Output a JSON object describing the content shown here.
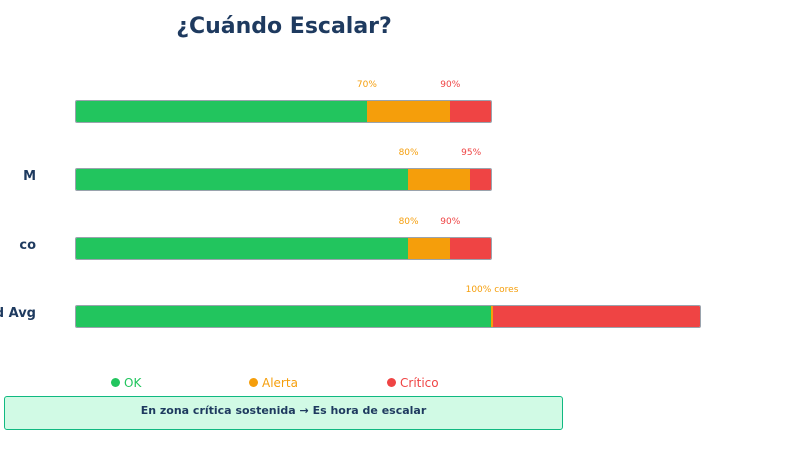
{
  "title": "¿Cuándo Escalar?",
  "colors": {
    "ok": "#22c55e",
    "alert": "#f59e0b",
    "critical": "#ef4444",
    "text": "#1e3a5f"
  },
  "rows": [
    {
      "label": "",
      "ok_to": 70,
      "alert_to": 90,
      "end": 100,
      "thresholds": [
        {
          "label": "70%",
          "at": 70,
          "level": "alert"
        },
        {
          "label": "90%",
          "at": 90,
          "level": "critical"
        }
      ]
    },
    {
      "label": "M",
      "ok_to": 80,
      "alert_to": 95,
      "end": 100,
      "thresholds": [
        {
          "label": "80%",
          "at": 80,
          "level": "alert"
        },
        {
          "label": "95%",
          "at": 95,
          "level": "critical"
        }
      ]
    },
    {
      "label": "co",
      "ok_to": 80,
      "alert_to": 90,
      "end": 100,
      "thresholds": [
        {
          "label": "80%",
          "at": 80,
          "level": "alert"
        },
        {
          "label": "90%",
          "at": 90,
          "level": "critical"
        }
      ]
    },
    {
      "label": "d Avg",
      "ok_to": 100,
      "alert_to": 100,
      "end": 150,
      "thresholds": [
        {
          "label": "100% cores",
          "at": 100,
          "level": "alert"
        }
      ]
    }
  ],
  "legend": [
    {
      "label": "OK",
      "level": "ok"
    },
    {
      "label": "Alerta",
      "level": "alert"
    },
    {
      "label": "Crítico",
      "level": "critical"
    }
  ],
  "note": "En zona crítica sostenida → Es hora de escalar"
}
